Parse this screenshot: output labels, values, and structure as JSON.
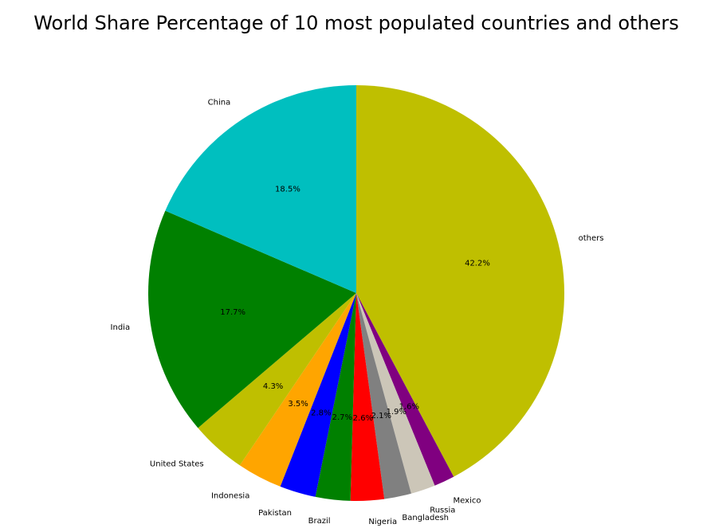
{
  "chart_data": {
    "type": "pie",
    "title": "World Share Percentage of 10 most populated countries and others",
    "start": "top, clockwise",
    "slices": [
      {
        "label": "others",
        "value": 42.2,
        "display": "42.2%",
        "color": "#bfbf00"
      },
      {
        "label": "Mexico",
        "value": 1.6,
        "display": "1.6%",
        "color": "#800080"
      },
      {
        "label": "Russia",
        "value": 1.9,
        "display": "1.9%",
        "color": "#ccc6b8"
      },
      {
        "label": "Bangladesh",
        "value": 2.1,
        "display": "2.1%",
        "color": "#808080"
      },
      {
        "label": "Nigeria",
        "value": 2.6,
        "display": "2.6%",
        "color": "#ff0000"
      },
      {
        "label": "Brazil",
        "value": 2.7,
        "display": "2.7%",
        "color": "#008000"
      },
      {
        "label": "Pakistan",
        "value": 2.8,
        "display": "2.8%",
        "color": "#0000ff"
      },
      {
        "label": "Indonesia",
        "value": 3.5,
        "display": "3.5%",
        "color": "#ffa500"
      },
      {
        "label": "United States",
        "value": 4.3,
        "display": "4.3%",
        "color": "#bfbf00"
      },
      {
        "label": "India",
        "value": 17.7,
        "display": "17.7%",
        "color": "#008000"
      },
      {
        "label": "China",
        "value": 18.5,
        "display": "18.5%",
        "color": "#00bfbf"
      }
    ]
  }
}
